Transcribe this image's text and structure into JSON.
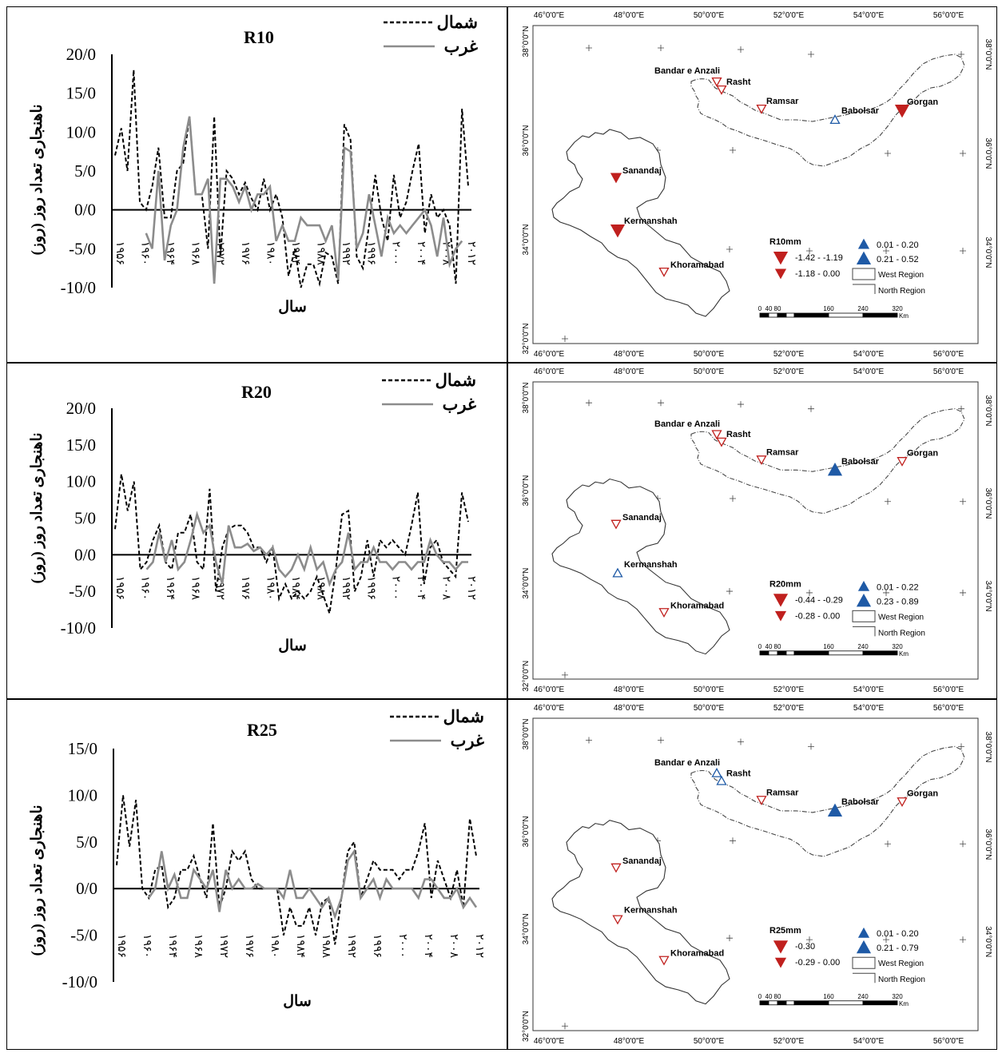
{
  "panels": [
    {
      "chart_data": {
        "type": "line",
        "title": "R10",
        "ylabel": "ناهنجاری تعداد روز (روز)",
        "xlabel": "سال",
        "yticks": [
          "20/0",
          "15/0",
          "10/0",
          "5/0",
          "0/0",
          "-5/0",
          "-10/0"
        ],
        "ytick_values": [
          20,
          15,
          10,
          5,
          0,
          -5,
          -10
        ],
        "ylim": [
          -10,
          20
        ],
        "xticks": [
          "۱۹۵۶",
          "۱۹۶۰",
          "۱۹۶۴",
          "۱۹۶۸",
          "۱۹۷۲",
          "۱۹۷۶",
          "۱۹۸۰",
          "۱۹۸۴",
          "۱۹۸۸",
          "۱۹۹۲",
          "۱۹۹۶",
          "۲۰۰۰",
          "۲۰۰۴",
          "۲۰۰۸",
          "۲۰۱۲"
        ],
        "legend_position": "top-right",
        "series": [
          {
            "name": "شمال",
            "style": "dashed",
            "color": "#000000",
            "values": [
              7,
              10.5,
              5,
              18,
              1,
              0,
              3,
              8,
              -1,
              -1,
              5,
              6,
              12,
              2,
              2,
              -5,
              12,
              -6,
              5,
              4,
              2,
              3.5,
              1.5,
              0,
              4,
              0,
              2,
              -1,
              -8.5,
              -5,
              -10,
              -7,
              -7,
              -9.5,
              -5.5,
              -6,
              -9.5,
              11,
              9,
              -6,
              -7.5,
              -2,
              4.5,
              -1,
              -4,
              4.5,
              -1,
              1,
              5,
              8.5,
              -3,
              2,
              -1,
              0,
              -2,
              -9.5,
              13,
              3
            ]
          },
          {
            "name": "غرب",
            "style": "solid",
            "color": "#8c8c8c",
            "values": [
              null,
              null,
              null,
              null,
              null,
              -3,
              -5,
              5,
              -6.5,
              -2,
              0,
              8,
              12,
              2,
              2,
              4,
              -9.5,
              4,
              4,
              3,
              1,
              3,
              0,
              2,
              2,
              3,
              -4,
              -2,
              -4,
              -4,
              -1,
              -2,
              -2,
              -2,
              -4,
              -2,
              -9,
              8,
              7.5,
              -5,
              -3,
              2,
              -2,
              -6,
              -1,
              -3,
              -2,
              -3,
              -2,
              -1,
              0,
              -2,
              -6,
              -1,
              -7,
              -5,
              -4
            ]
          }
        ]
      }
    },
    {
      "chart_data": {
        "type": "line",
        "title": "R20",
        "ylabel": "ناهنجاری تعداد روز (روز)",
        "xlabel": "سال",
        "yticks": [
          "20/0",
          "15/0",
          "10/0",
          "5/0",
          "0/0",
          "-5/0",
          "-10/0"
        ],
        "ytick_values": [
          20,
          15,
          10,
          5,
          0,
          -5,
          -10
        ],
        "ylim": [
          -10,
          20
        ],
        "xticks": [
          "۱۹۵۶",
          "۱۹۶۰",
          "۱۹۶۴",
          "۱۹۶۸",
          "۱۹۷۲",
          "۱۹۷۶",
          "۱۹۸۰",
          "۱۹۸۴",
          "۱۹۸۸",
          "۱۹۹۲",
          "۱۹۹۶",
          "۲۰۰۰",
          "۲۰۰۴",
          "۲۰۰۸",
          "۲۰۱۲"
        ],
        "legend_position": "top-right",
        "series": [
          {
            "name": "شمال",
            "style": "dashed",
            "color": "#000000",
            "values": [
              3.5,
              11,
              6,
              10,
              -2,
              -1,
              2,
              4,
              -1,
              -2,
              3,
              3,
              5.5,
              -1,
              -2,
              9,
              -5,
              1,
              3.5,
              4,
              4,
              3,
              1,
              1,
              -1,
              1,
              -6,
              -4,
              -6,
              -5,
              -6,
              -5,
              -3,
              -5.5,
              -8,
              -2,
              5.5,
              6,
              -5,
              -3,
              2,
              -3,
              2,
              1,
              2,
              1,
              0,
              4,
              8.5,
              -4,
              1,
              2,
              -1,
              -2,
              -3,
              8.5,
              4.5
            ]
          },
          {
            "name": "غرب",
            "style": "solid",
            "color": "#8c8c8c",
            "values": [
              null,
              null,
              null,
              null,
              null,
              -2,
              -1,
              3,
              -1,
              2,
              -2,
              -1,
              2,
              5.5,
              3,
              4,
              -1,
              -4,
              4,
              1,
              1,
              1.5,
              0.5,
              1,
              0,
              1,
              -2,
              -3,
              -2,
              0,
              -2,
              1,
              -2,
              -1,
              -4,
              -2,
              -1,
              3,
              -2,
              -1,
              -1,
              1,
              -1,
              -1,
              -2,
              -1,
              -1,
              -2,
              -1,
              -1,
              2,
              0,
              -1,
              -1,
              -2,
              -1,
              -1
            ]
          }
        ]
      }
    },
    {
      "chart_data": {
        "type": "line",
        "title": "R25",
        "ylabel": "ناهنجاری تعداد روز (روز)",
        "xlabel": "سال",
        "yticks": [
          "15/0",
          "10/0",
          "5/0",
          "0/0",
          "-5/0",
          "-10/0"
        ],
        "ytick_values": [
          15,
          10,
          5,
          0,
          -5,
          -10
        ],
        "ylim": [
          -10,
          15
        ],
        "xticks": [
          "۱۹۵۶",
          "۱۹۶۰",
          "۱۹۶۴",
          "۱۹۶۸",
          "۱۹۷۲",
          "۱۹۷۶",
          "۱۹۸۰",
          "۱۹۸۴",
          "۱۹۸۸",
          "۱۹۹۲",
          "۱۹۹۶",
          "۲۰۰۰",
          "۲۰۰۴",
          "۲۰۰۸",
          "۲۰۱۲"
        ],
        "legend_position": "top-right",
        "series": [
          {
            "name": "شمال",
            "style": "dashed",
            "color": "#000000",
            "values": [
              2.5,
              10,
              4.5,
              9.5,
              0,
              -1,
              2,
              2.5,
              -2,
              -1,
              2,
              2,
              3.5,
              1,
              -1,
              7,
              -2,
              0,
              4,
              3,
              4,
              1,
              0,
              0,
              0,
              0,
              -5,
              -2,
              -4,
              -4,
              -2,
              -5,
              -1.5,
              -1,
              -6,
              -1,
              4,
              5,
              -1,
              1,
              3,
              2,
              2,
              2,
              1,
              2,
              2,
              4,
              7,
              -1,
              3,
              1,
              -1,
              2,
              -2,
              7.5,
              3.5
            ]
          },
          {
            "name": "غرب",
            "style": "solid",
            "color": "#8c8c8c",
            "values": [
              null,
              null,
              null,
              null,
              null,
              -1,
              0,
              4,
              0,
              1.5,
              -1,
              -1,
              2,
              1,
              0,
              2,
              -2.5,
              2,
              0,
              1,
              0,
              0,
              0.5,
              0,
              0,
              0,
              -1,
              2,
              -1,
              -1,
              0,
              -1,
              -2,
              -1,
              -3,
              -1,
              3,
              4,
              -1,
              0,
              1,
              -1,
              1,
              0,
              0,
              0,
              0,
              -1,
              1,
              1,
              0,
              -1,
              -1,
              0,
              -2,
              -1,
              -2
            ]
          }
        ]
      }
    }
  ],
  "maps": [
    {
      "index_label": "R10mm",
      "legend": {
        "neg1": "-1.42 - -1.19",
        "neg2": "-1.18 - 0.00",
        "pos1": "0.01 - 0.20",
        "pos2": "0.21 - 0.52",
        "west": "West Region",
        "north": "North Region"
      },
      "stations": {
        "anzali": "Bandar e Anzali",
        "rasht": "Rasht",
        "ramsar": "Ramsar",
        "babolsar": "Babolsar",
        "gorgan": "Gorgan",
        "sanandaj": "Sanandaj",
        "kermanshah": "Kermanshah",
        "khoramabad": "Khoramabad"
      },
      "symbols": {
        "anzali": "down-open",
        "rasht": "down-open",
        "ramsar": "down-open",
        "babolsar": "up-open",
        "gorgan": "down-big",
        "sanandaj": "down-small",
        "kermanshah": "down-big",
        "khoramabad": "down-open"
      }
    },
    {
      "index_label": "R20mm",
      "legend": {
        "neg1": "-0.44 - -0.29",
        "neg2": "-0.28 - 0.00",
        "pos1": "0.01 - 0.22",
        "pos2": "0.23 - 0.89",
        "west": "West Region",
        "north": "North Region"
      },
      "stations": {
        "anzali": "Bandar e Anzali",
        "rasht": "Rasht",
        "ramsar": "Ramsar",
        "babolsar": "Babolsar",
        "gorgan": "Gorgan",
        "sanandaj": "Sanandaj",
        "kermanshah": "Kermanshah",
        "khoramabad": "Khoramabad"
      },
      "symbols": {
        "anzali": "down-open",
        "rasht": "down-open",
        "ramsar": "down-open",
        "babolsar": "up-big",
        "gorgan": "down-open",
        "sanandaj": "down-open",
        "kermanshah": "up-open",
        "khoramabad": "down-open"
      }
    },
    {
      "index_label": "R25mm",
      "legend": {
        "neg1": "-0.30",
        "neg2": "-0.29 - 0.00",
        "pos1": "0.01 - 0.20",
        "pos2": "0.21 - 0.79",
        "west": "West Region",
        "north": "North Region"
      },
      "stations": {
        "anzali": "Bandar e Anzali",
        "rasht": "Rasht",
        "ramsar": "Ramsar",
        "babolsar": "Babolsar",
        "gorgan": "Gorgan",
        "sanandaj": "Sanandaj",
        "kermanshah": "Kermanshah",
        "khoramabad": "Khoramabad"
      },
      "symbols": {
        "anzali": "up-open",
        "rasht": "up-open",
        "ramsar": "down-open",
        "babolsar": "up-big",
        "gorgan": "down-open",
        "sanandaj": "down-open",
        "kermanshah": "down-open",
        "khoramabad": "down-open"
      }
    }
  ],
  "map_axes": {
    "lon_labels": [
      "46°0'0\"E",
      "48°0'0\"E",
      "50°0'0\"E",
      "52°0'0\"E",
      "54°0'0\"E",
      "56°0'0\"E"
    ],
    "lat_labels": [
      "38°0'0\"N",
      "36°0'0\"N",
      "34°0'0\"N",
      "32°0'0\"N"
    ],
    "scale_labels": [
      "0",
      "40",
      "80",
      "160",
      "240",
      "320"
    ],
    "scale_unit": "Km"
  }
}
